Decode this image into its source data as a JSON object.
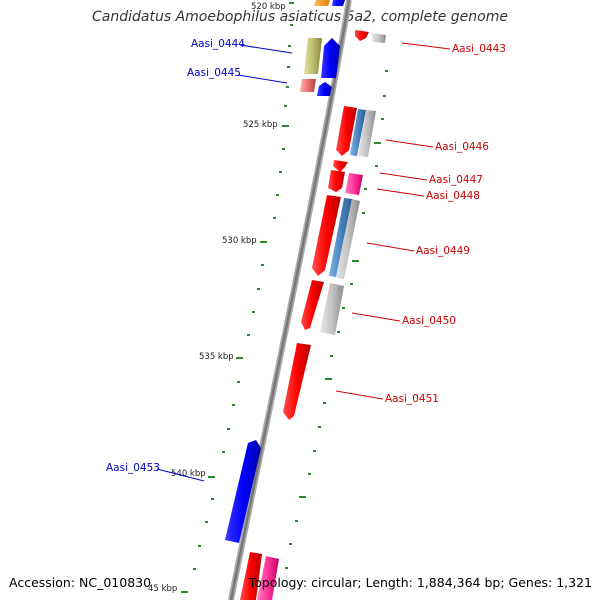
{
  "title": "Candidatus Amoebophilus asiaticus 5a2, complete genome",
  "footer": {
    "accession": "Accession: NC_010830",
    "stats": "Topology: circular; Length: 1,884,364 bp; Genes: 1,321"
  },
  "ticks": [
    {
      "label": "520 kbp"
    },
    {
      "label": "525 kbp"
    },
    {
      "label": "530 kbp"
    },
    {
      "label": "535 kbp"
    },
    {
      "label": "540 kbp"
    },
    {
      "label": "45 kbp"
    }
  ],
  "gene_labels": [
    {
      "text": "Aasi_0443",
      "color": "#cc0000"
    },
    {
      "text": "Aasi_0444",
      "color": "#0000cc"
    },
    {
      "text": "Aasi_0445",
      "color": "#0000cc"
    },
    {
      "text": "Aasi_0446",
      "color": "#cc0000"
    },
    {
      "text": "Aasi_0447",
      "color": "#cc0000"
    },
    {
      "text": "Aasi_0448",
      "color": "#cc0000"
    },
    {
      "text": "Aasi_0449",
      "color": "#cc0000"
    },
    {
      "text": "Aasi_0450",
      "color": "#cc0000"
    },
    {
      "text": "Aasi_0451",
      "color": "#cc0000"
    },
    {
      "text": "Aasi_0453",
      "color": "#0000cc"
    }
  ],
  "colors": {
    "cds": "#ff0000",
    "cds_reverse": "#0000ff",
    "rrna": "#ff3399",
    "trna": "#bdbd6b",
    "blast": "#bfbfbf",
    "blast_blue": "#4a86c0",
    "tick": "#2b8a2b",
    "backbone": "#888888"
  }
}
